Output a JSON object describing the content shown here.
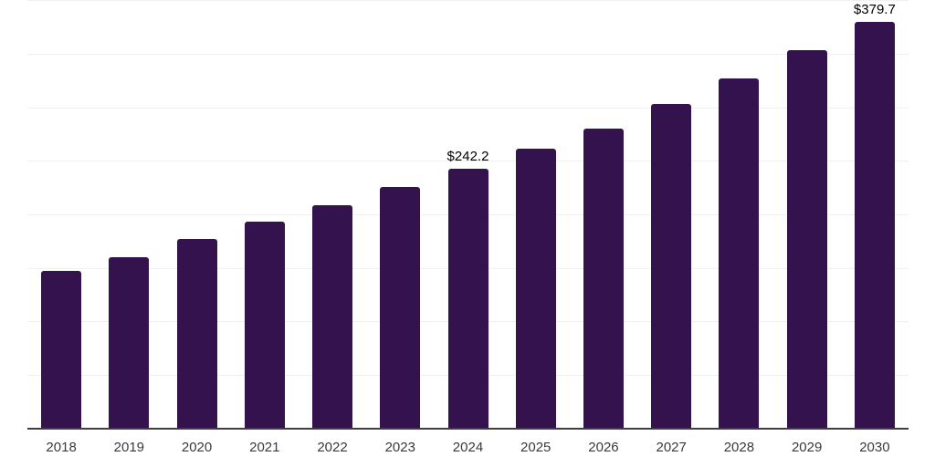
{
  "chart_data": {
    "type": "bar",
    "title": "",
    "xlabel": "",
    "ylabel": "",
    "categories": [
      "2018",
      "2019",
      "2020",
      "2021",
      "2022",
      "2023",
      "2024",
      "2025",
      "2026",
      "2027",
      "2028",
      "2029",
      "2030"
    ],
    "values": [
      146.8,
      159.9,
      176.3,
      192.5,
      208.4,
      225.2,
      242.2,
      261.0,
      280.1,
      302.8,
      326.9,
      353.1,
      379.7
    ],
    "value_labels": [
      "",
      "",
      "",
      "",
      "",
      "",
      "$242.2",
      "",
      "",
      "",
      "",
      "",
      "$379.7"
    ],
    "ylim": [
      0,
      400
    ],
    "grid_step": 50,
    "grid": true,
    "legend": false,
    "colors": {
      "bar": "#33124e",
      "gridline": "#f0f0f0",
      "axis_line": "#3f3f3f",
      "tick_label": "#3a3a3a",
      "value_label": "#000000",
      "background": "#ffffff"
    }
  }
}
